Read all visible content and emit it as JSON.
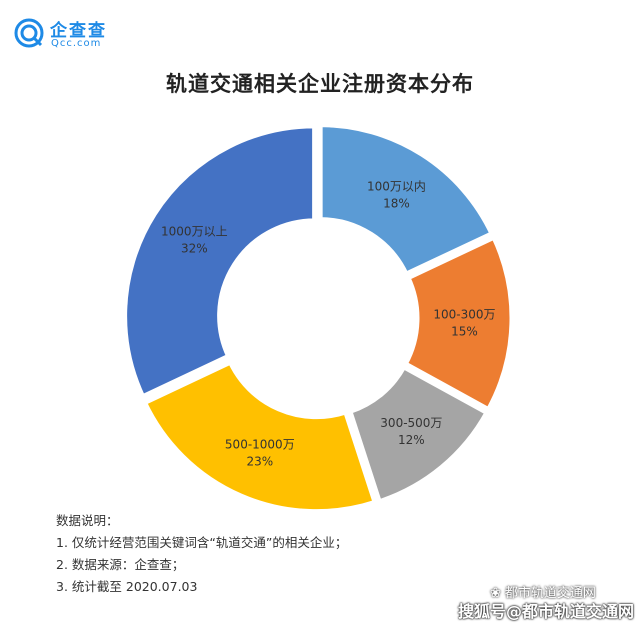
{
  "brand": {
    "name": "企查查",
    "domain": "Qcc.com",
    "color": "#1E8AE6"
  },
  "chart_data": {
    "type": "pie",
    "donut": true,
    "title": "轨道交通相关企业注册资本分布",
    "slices": [
      {
        "label": "100万以内",
        "value": 18,
        "pct_label": "18%",
        "color": "#5B9BD5"
      },
      {
        "label": "100-300万",
        "value": 15,
        "pct_label": "15%",
        "color": "#ED7D31"
      },
      {
        "label": "300-500万",
        "value": 12,
        "pct_label": "12%",
        "color": "#A5A5A5"
      },
      {
        "label": "500-1000万",
        "value": 23,
        "pct_label": "23%",
        "color": "#FFC000"
      },
      {
        "label": "1000万以上",
        "value": 32,
        "pct_label": "32%",
        "color": "#4472C4"
      }
    ]
  },
  "notes": {
    "heading": "数据说明：",
    "items": [
      "1. 仅统计经营范围关键词含“轨道交通”的相关企业；",
      "2. 数据来源：企查查；",
      "3. 统计截至 2020.07.03"
    ]
  },
  "watermark": {
    "account": "都市轨道交通网",
    "line2": "搜狐号@都市轨道交通网"
  }
}
